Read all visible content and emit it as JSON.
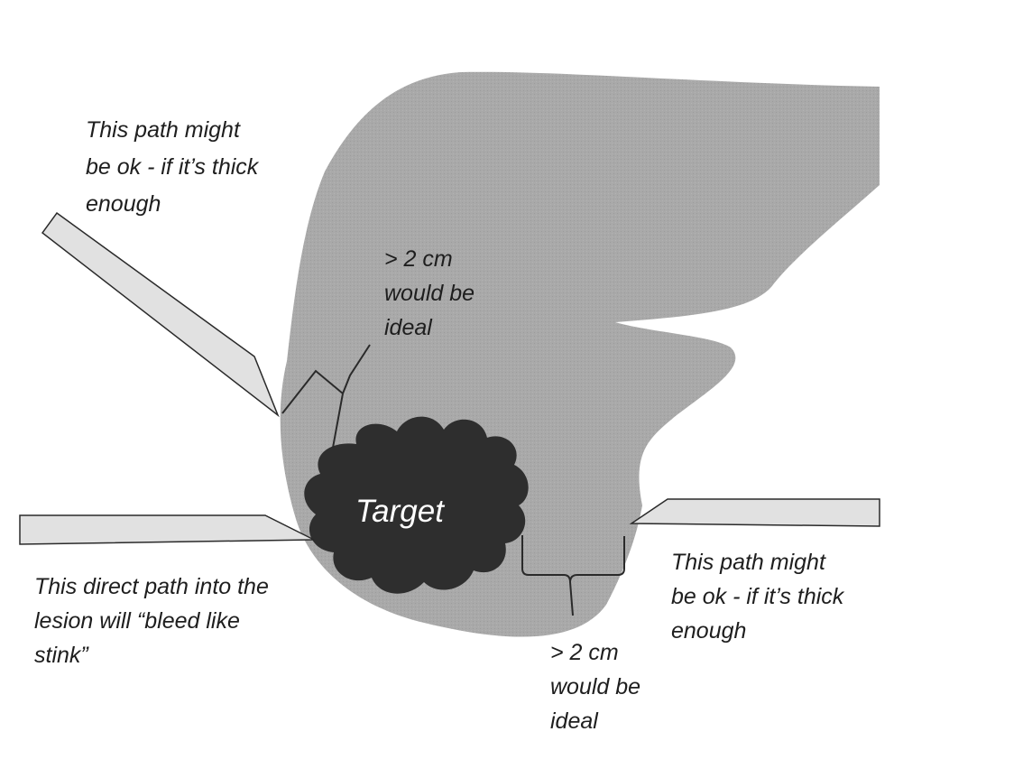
{
  "target_label": "Target",
  "annotations": {
    "upper_left_path": [
      "This path might",
      "be ok - if it’s thick",
      "enough"
    ],
    "upper_distance": [
      "> 2 cm",
      "would be",
      "ideal"
    ],
    "direct_path": [
      "This direct path into the",
      "lesion will “bleed like",
      "stink”"
    ],
    "lower_distance": [
      "> 2 cm",
      "would be",
      "ideal"
    ],
    "right_path": [
      "This path might",
      "be ok - if it’s thick",
      "enough"
    ]
  },
  "colors": {
    "organ": "#a7a7a7",
    "lesion": "#2e2e2e",
    "needle_fill": "#e1e1e1",
    "stroke": "#2a2a2a"
  }
}
